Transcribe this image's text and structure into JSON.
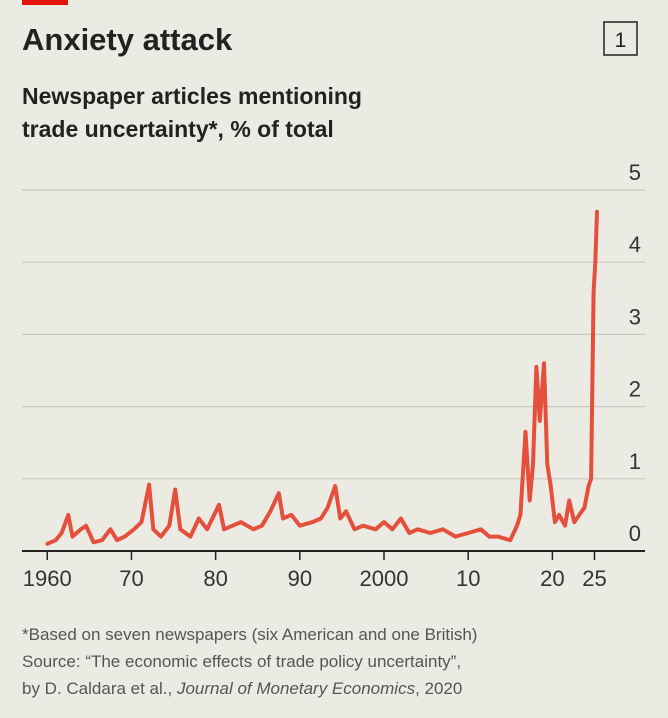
{
  "chart_data": {
    "type": "line",
    "badge": "1",
    "title": "Anxiety attack",
    "subtitle": [
      "Newspaper articles mentioning",
      "trade uncertainty*, % of total"
    ],
    "notes": [
      "*Based on seven newspapers (six American and one British)",
      "Source: “The economic effects of trade policy uncertainty”,"
    ],
    "source_parts": [
      "by D. Caldara et al., ",
      "Journal of Monetary Economics",
      ", 2020"
    ],
    "color": "#e4503c",
    "x": [
      1960,
      1961,
      1961.7,
      1962.5,
      1963,
      1964,
      1964.6,
      1965.5,
      1966.5,
      1967.5,
      1968.3,
      1969.2,
      1970.3,
      1971.2,
      1972.1,
      1972.6,
      1973.5,
      1974.5,
      1975.2,
      1975.8,
      1977,
      1978,
      1979,
      1980.4,
      1981,
      1982,
      1983,
      1984.5,
      1985.5,
      1986.5,
      1987.5,
      1988,
      1989,
      1990,
      1991.5,
      1992.5,
      1993.3,
      1994.2,
      1994.8,
      1995.5,
      1996.5,
      1997.5,
      1999,
      2000,
      2001,
      2002,
      2003,
      2004,
      2005.5,
      2007,
      2008.5,
      2010,
      2011.5,
      2012.5,
      2013.5,
      2015,
      2015.8,
      2016.2,
      2016.8,
      2017.3,
      2017.7,
      2018.1,
      2018.5,
      2019,
      2019.4,
      2019.8,
      2020.3,
      2020.8,
      2021.5,
      2022,
      2022.6,
      2023.2,
      2023.8,
      2024.3,
      2024.6,
      2024.9,
      2025.1,
      2025.3
    ],
    "values": [
      0.1,
      0.15,
      0.25,
      0.5,
      0.2,
      0.3,
      0.35,
      0.12,
      0.15,
      0.3,
      0.15,
      0.2,
      0.3,
      0.4,
      0.92,
      0.3,
      0.2,
      0.35,
      0.85,
      0.3,
      0.2,
      0.45,
      0.3,
      0.64,
      0.3,
      0.35,
      0.4,
      0.3,
      0.35,
      0.55,
      0.8,
      0.45,
      0.5,
      0.35,
      0.4,
      0.45,
      0.6,
      0.9,
      0.45,
      0.55,
      0.3,
      0.35,
      0.3,
      0.4,
      0.3,
      0.45,
      0.25,
      0.3,
      0.25,
      0.3,
      0.2,
      0.25,
      0.3,
      0.2,
      0.2,
      0.15,
      0.35,
      0.5,
      1.65,
      0.7,
      1.2,
      2.55,
      1.8,
      2.6,
      1.2,
      0.9,
      0.4,
      0.5,
      0.35,
      0.7,
      0.4,
      0.5,
      0.6,
      0.9,
      1.0,
      3.6,
      4.0,
      4.7
    ],
    "xlim": [
      1957,
      2031
    ],
    "ylim": [
      0,
      5
    ],
    "xticks": [
      1960,
      {
        "value": 1970,
        "label": "70"
      },
      {
        "value": 1980,
        "label": "80"
      },
      {
        "value": 1990,
        "label": "90"
      },
      2000,
      {
        "value": 2010,
        "label": "10"
      },
      {
        "value": 2020,
        "label": "20"
      },
      {
        "value": 2025,
        "label": "25"
      }
    ],
    "yticks": [
      0,
      1,
      2,
      3,
      4,
      5
    ],
    "grid": true
  }
}
